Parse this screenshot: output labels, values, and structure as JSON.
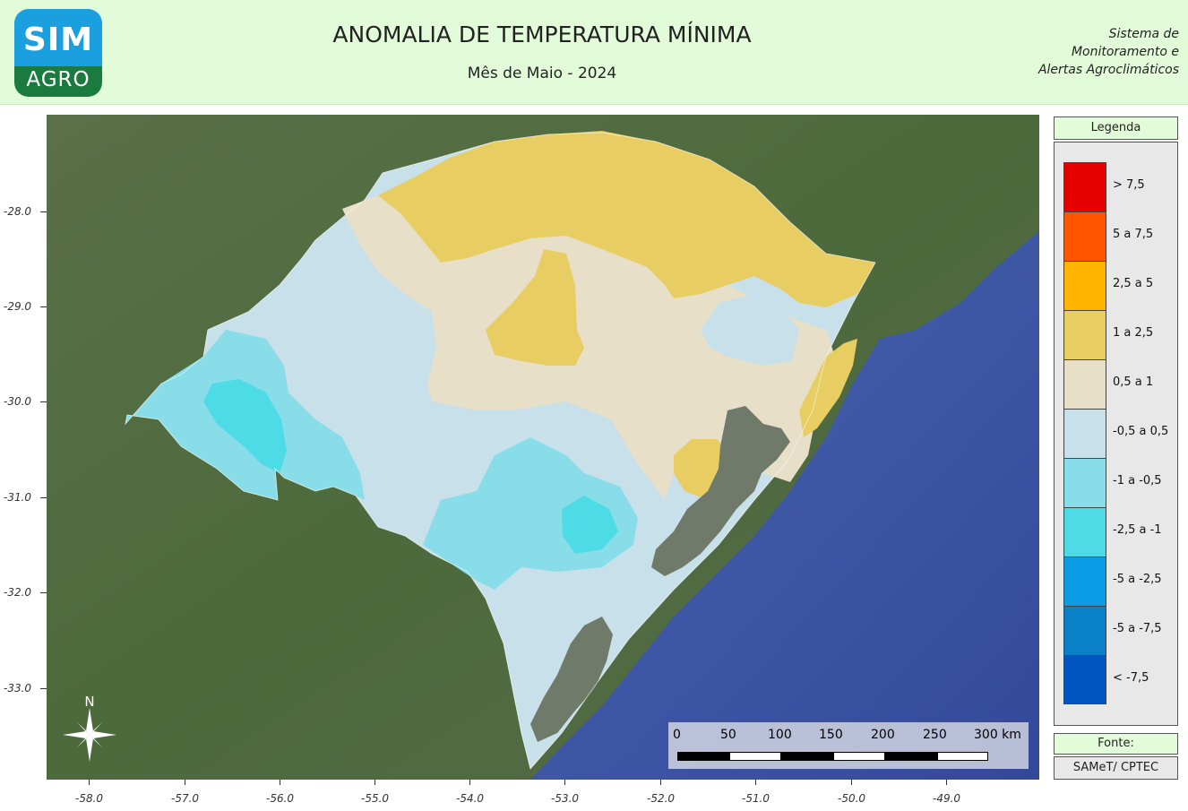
{
  "header": {
    "logo_top": "SIM",
    "logo_bottom": "AGRO",
    "title": "ANOMALIA DE TEMPERATURA MÍNIMA",
    "subtitle": "Mês de Maio - 2024",
    "system_lines": [
      "Sistema de",
      "Monitoramento e",
      "Alertas Agroclimáticos"
    ]
  },
  "axes": {
    "y_ticks": [
      "-28.0",
      "-29.0",
      "-30.0",
      "-31.0",
      "-32.0",
      "-33.0"
    ],
    "x_ticks": [
      "-58.0",
      "-57.0",
      "-56.0",
      "-55.0",
      "-54.0",
      "-53.0",
      "-52.0",
      "-51.0",
      "-50.0",
      "-49.0"
    ]
  },
  "map": {
    "north_label": "N",
    "colors": {
      "ocean": "#4a5fa8",
      "land_outside": "#4f6a3f",
      "lagoon": "#6f7a6a"
    }
  },
  "legend": {
    "title": "Legenda",
    "items": [
      {
        "label": "> 7,5",
        "color": "#e60000"
      },
      {
        "label": "5 a 7,5",
        "color": "#ff5500"
      },
      {
        "label": "2,5 a 5",
        "color": "#ffb400"
      },
      {
        "label": "1 a 2,5",
        "color": "#e8cd63"
      },
      {
        "label": "0,5 a 1",
        "color": "#e7dfc8"
      },
      {
        "label": "-0,5 a 0,5",
        "color": "#c8e0ea"
      },
      {
        "label": "-1 a -0,5",
        "color": "#88dde8"
      },
      {
        "label": "-2,5 a -1",
        "color": "#4ddbe6"
      },
      {
        "label": "-5 a -2,5",
        "color": "#0c9ce6"
      },
      {
        "label": "-5 a -7,5",
        "color": "#0a80c8"
      },
      {
        "label": "< -7,5",
        "color": "#0055c0"
      }
    ]
  },
  "source": {
    "label": "Fonte:",
    "value": "SAMeT/ CPTEC"
  },
  "scalebar": {
    "labels": [
      "0",
      "50",
      "100",
      "150",
      "200",
      "250",
      "300 km"
    ]
  }
}
